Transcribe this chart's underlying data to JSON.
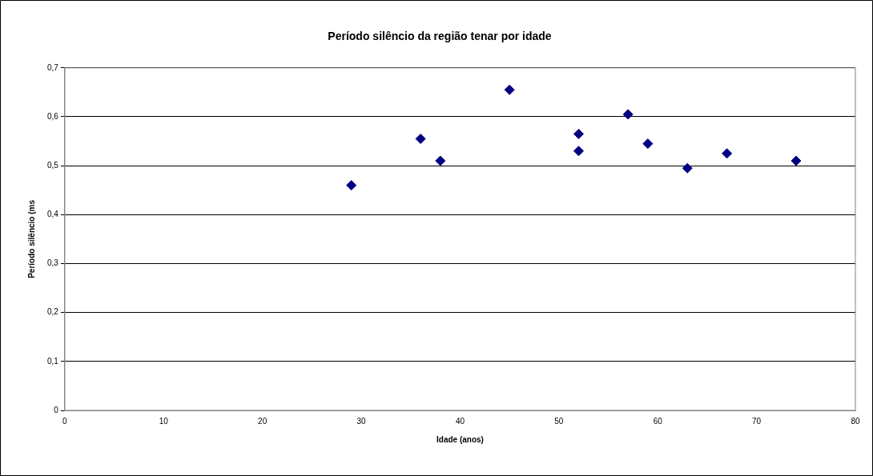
{
  "chart_data": {
    "type": "scatter",
    "title": "Período silêncio da região tenar por idade",
    "xlabel": "Idade (anos)",
    "ylabel": "Período silêncio (ms",
    "x": [
      29,
      36,
      38,
      45,
      52,
      52,
      57,
      59,
      63,
      67,
      74
    ],
    "series": [
      {
        "color": "#000080",
        "values": [
          0.46,
          0.555,
          0.51,
          0.655,
          0.565,
          0.53,
          0.605,
          0.545,
          0.495,
          0.525,
          0.51
        ]
      }
    ],
    "xlim": [
      0,
      80
    ],
    "xticks": [
      0,
      10,
      20,
      30,
      40,
      50,
      60,
      70,
      80
    ],
    "ylim": [
      0,
      0.7
    ],
    "yticks": [
      0,
      {
        "value": 0.1,
        "label": "0,1"
      },
      {
        "value": 0.2,
        "label": "0,2"
      },
      {
        "value": 0.3,
        "label": "0,3"
      },
      {
        "value": 0.4,
        "label": "0,4"
      },
      {
        "value": 0.5,
        "label": "0,5"
      },
      {
        "value": 0.6,
        "label": "0,6"
      },
      {
        "value": 0.7,
        "label": "0,7"
      }
    ],
    "grid": "y",
    "legend": false,
    "marker": "diamond"
  }
}
